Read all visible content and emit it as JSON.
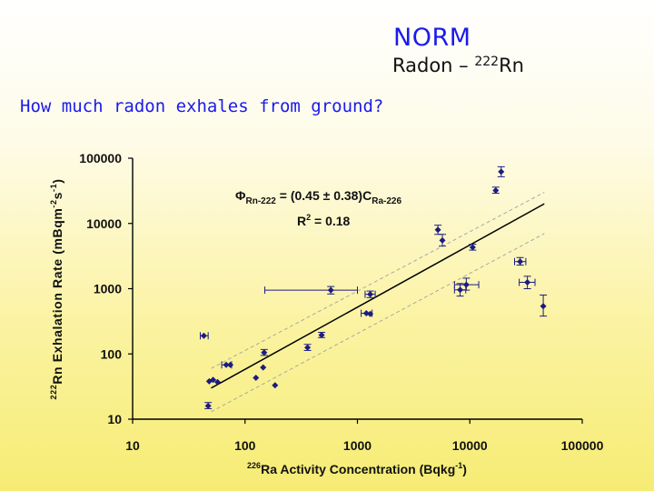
{
  "header": {
    "title": "NORM",
    "subtitle_prefix": "Radon – ",
    "subtitle_isotope_mass": "222",
    "subtitle_isotope_symbol": "Rn",
    "question": "How much radon exhales from ground?"
  },
  "chart_data": {
    "type": "scatter",
    "x_scale": "log",
    "y_scale": "log",
    "xlim": [
      10,
      100000
    ],
    "ylim": [
      10,
      100000
    ],
    "x_ticks": [
      "10",
      "100",
      "1000",
      "10000",
      "100000"
    ],
    "y_ticks": [
      "10",
      "100",
      "1000",
      "10000",
      "100000"
    ],
    "xlabel_mass": "226",
    "xlabel": "Ra Activity Concentration (Bqkg",
    "xlabel_exp": "-1",
    "xlabel_close": ")",
    "ylabel_mass": "222",
    "ylabel": "Rn Exhalation Rate (mBqm",
    "ylabel_exp1": "-2",
    "ylabel_mid": "s",
    "ylabel_exp2": "-1",
    "ylabel_close": ")",
    "equation": {
      "phi": "Φ",
      "phi_sub": "Rn-222",
      "body": " = (0.45 ± 0.38)C",
      "c_sub": "Ra-226",
      "r2_base": "R",
      "r2_exp": "2",
      "r2_value": " = 0.18"
    },
    "fit_line": {
      "x": [
        50,
        46000
      ],
      "y": [
        30,
        20000
      ]
    },
    "upper_bound": {
      "x": [
        50,
        46000
      ],
      "y": [
        60,
        30000
      ]
    },
    "lower_bound": {
      "x": [
        50,
        46000
      ],
      "y": [
        13,
        7000
      ]
    },
    "points": [
      {
        "x": 43,
        "y": 190,
        "xerr": [
          40,
          47
        ]
      },
      {
        "x": 47,
        "y": 16,
        "yerr": [
          14.5,
          18
        ]
      },
      {
        "x": 48,
        "y": 38
      },
      {
        "x": 52,
        "y": 40
      },
      {
        "x": 57,
        "y": 37
      },
      {
        "x": 68,
        "y": 68,
        "xerr": [
          62,
          76
        ]
      },
      {
        "x": 74,
        "y": 68
      },
      {
        "x": 125,
        "y": 43
      },
      {
        "x": 145,
        "y": 62
      },
      {
        "x": 148,
        "y": 105,
        "yerr": [
          95,
          117
        ]
      },
      {
        "x": 185,
        "y": 33
      },
      {
        "x": 360,
        "y": 125,
        "yerr": [
          113,
          140
        ]
      },
      {
        "x": 480,
        "y": 195,
        "yerr": [
          178,
          214
        ]
      },
      {
        "x": 580,
        "y": 950,
        "xerr": [
          150,
          1000
        ],
        "yerr": [
          830,
          1080
        ]
      },
      {
        "x": 1200,
        "y": 420,
        "xerr": [
          1080,
          1350
        ]
      },
      {
        "x": 1300,
        "y": 410
      },
      {
        "x": 1300,
        "y": 820,
        "xerr": [
          1170,
          1440
        ],
        "yerr": [
          730,
          920
        ]
      },
      {
        "x": 5200,
        "y": 8000,
        "yerr": [
          6800,
          9400
        ]
      },
      {
        "x": 5700,
        "y": 5500,
        "yerr": [
          4500,
          6800
        ]
      },
      {
        "x": 8200,
        "y": 960,
        "xerr": [
          7300,
          9200
        ],
        "yerr": [
          770,
          1200
        ]
      },
      {
        "x": 9300,
        "y": 1150,
        "xerr": [
          7300,
          12000
        ],
        "yerr": [
          950,
          1450
        ]
      },
      {
        "x": 10600,
        "y": 4300,
        "yerr": [
          3900,
          4800
        ]
      },
      {
        "x": 17000,
        "y": 32000,
        "yerr": [
          29000,
          36000
        ]
      },
      {
        "x": 19000,
        "y": 62000,
        "yerr": [
          52000,
          74000
        ]
      },
      {
        "x": 28000,
        "y": 2600,
        "xerr": [
          25000,
          31500
        ],
        "yerr": [
          2300,
          3000
        ]
      },
      {
        "x": 32500,
        "y": 1250,
        "xerr": [
          27500,
          38000
        ],
        "yerr": [
          1000,
          1550
        ]
      },
      {
        "x": 45000,
        "y": 540,
        "yerr": [
          380,
          800
        ]
      }
    ],
    "colors": {
      "marker": "#1c1c80",
      "line": "#000000",
      "bounds": "#a8a8a8"
    },
    "grid": false,
    "legend": "none"
  }
}
